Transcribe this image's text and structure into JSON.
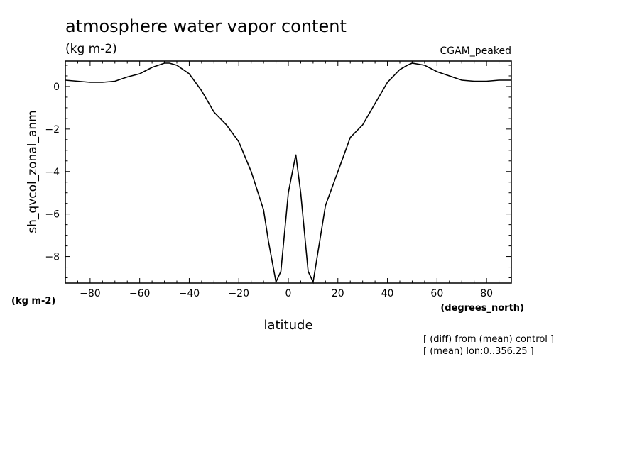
{
  "chart_data": {
    "type": "line",
    "title": "atmosphere water vapor content",
    "title_units": "(kg m-2)",
    "dataset_label": "CGAM_peaked",
    "ylabel": "sh_qvcol_zonal_anm",
    "y_units": "(kg m-2)",
    "xlabel": "latitude",
    "x_units": "(degrees_north)",
    "notes": [
      "[ (diff) from (mean) control ]",
      "[ (mean) lon:0..356.25 ]"
    ],
    "xlim": [
      -90,
      90
    ],
    "ylim": [
      -9.25,
      1.2
    ],
    "x_ticks": [
      -80,
      -60,
      -40,
      -20,
      0,
      20,
      40,
      60,
      80
    ],
    "x_tick_labels": [
      "−80",
      "−60",
      "−40",
      "−20",
      "0",
      "20",
      "40",
      "60",
      "80"
    ],
    "y_ticks": [
      0,
      -2,
      -4,
      -6,
      -8
    ],
    "y_tick_labels": [
      "0",
      "−2",
      "−4",
      "−6",
      "−8"
    ],
    "grid": false,
    "series": [
      {
        "x": [
          -90,
          -85,
          -80,
          -75,
          -70,
          -65,
          -60,
          -55,
          -50,
          -48,
          -45,
          -40,
          -35,
          -30,
          -25,
          -20,
          -15,
          -10,
          -8,
          -5,
          -3,
          0,
          3,
          5,
          8,
          10,
          15,
          20,
          25,
          30,
          35,
          40,
          45,
          48,
          50,
          55,
          60,
          65,
          70,
          75,
          80,
          85,
          90
        ],
        "y": [
          0.3,
          0.25,
          0.2,
          0.2,
          0.25,
          0.45,
          0.6,
          0.9,
          1.1,
          1.1,
          1.0,
          0.6,
          -0.2,
          -1.2,
          -1.8,
          -2.6,
          -4.0,
          -5.8,
          -7.3,
          -9.2,
          -8.7,
          -5.0,
          -3.2,
          -5.0,
          -8.7,
          -9.2,
          -5.6,
          -4.0,
          -2.4,
          -1.8,
          -0.8,
          0.2,
          0.8,
          1.0,
          1.1,
          1.0,
          0.7,
          0.5,
          0.3,
          0.25,
          0.25,
          0.3,
          0.3
        ]
      }
    ]
  }
}
